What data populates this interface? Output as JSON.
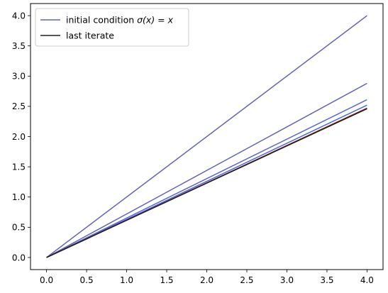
{
  "chart_data": {
    "type": "line",
    "title": "",
    "xlabel": "",
    "ylabel": "",
    "xlim": [
      -0.2,
      4.2
    ],
    "ylim": [
      -0.2,
      4.2
    ],
    "xticks": [
      "0.0",
      "0.5",
      "1.0",
      "1.5",
      "2.0",
      "2.5",
      "3.0",
      "3.5",
      "4.0"
    ],
    "yticks": [
      "0.0",
      "0.5",
      "1.0",
      "1.5",
      "2.0",
      "2.5",
      "3.0",
      "3.5",
      "4.0"
    ],
    "grid": false,
    "legend_position": "top-left",
    "series": [
      {
        "name": "initial condition σ(x) = x",
        "legend": true,
        "color": "#6464b4",
        "x": [
          0,
          4
        ],
        "y": [
          0,
          4.0
        ]
      },
      {
        "name": "",
        "legend": false,
        "color": "#6464b4",
        "x": [
          0,
          4
        ],
        "y": [
          0,
          2.88
        ]
      },
      {
        "name": "",
        "legend": false,
        "color": "#5a64d2",
        "x": [
          0,
          4
        ],
        "y": [
          0,
          2.61
        ]
      },
      {
        "name": "",
        "legend": false,
        "color": "#4b64e6",
        "x": [
          0,
          4
        ],
        "y": [
          0,
          2.52
        ]
      },
      {
        "name": "",
        "legend": false,
        "color": "#8c2814",
        "x": [
          0,
          4
        ],
        "y": [
          0,
          2.47
        ]
      },
      {
        "name": "last iterate",
        "legend": true,
        "color": "#1e1e1e",
        "x": [
          0,
          4
        ],
        "y": [
          0,
          2.46
        ]
      }
    ]
  },
  "legend": {
    "items": [
      {
        "label_main": "initial condition ",
        "label_math": "σ(x) = x",
        "color": "#6464b4"
      },
      {
        "label_main": "last iterate",
        "label_math": "",
        "color": "#1e1e1e"
      }
    ]
  }
}
